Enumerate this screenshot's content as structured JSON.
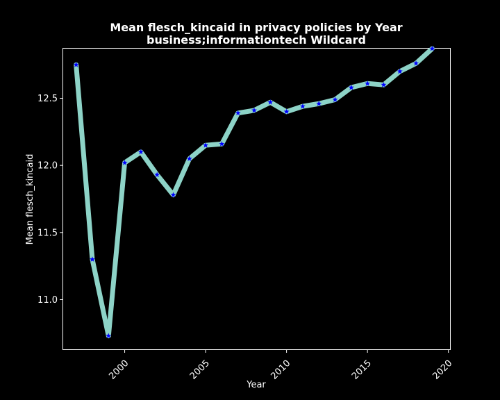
{
  "chart_data": {
    "type": "line",
    "title": "Mean flesch_kincaid in privacy policies by Year",
    "subtitle": "business;informationtech Wildcard",
    "xlabel": "Year",
    "ylabel": "Mean flesch_kincaid",
    "xlim": [
      1996.2,
      2020.1
    ],
    "ylim": [
      10.63,
      12.87
    ],
    "xticks": [
      2000,
      2005,
      2010,
      2015,
      2020
    ],
    "yticks": [
      11.0,
      11.5,
      12.0,
      12.5
    ],
    "grid": false,
    "line_color": "#8dd3c7",
    "marker_color": "#0000ff",
    "marker": "star",
    "series": [
      {
        "x": [
          1997,
          1998,
          1999,
          2000,
          2001,
          2002,
          2003,
          2004,
          2005,
          2006,
          2007,
          2008,
          2009,
          2010,
          2011,
          2012,
          2013,
          2014,
          2015,
          2016,
          2017,
          2018,
          2019
        ],
        "values": [
          12.75,
          11.3,
          10.73,
          12.02,
          12.1,
          11.93,
          11.78,
          12.05,
          12.15,
          12.16,
          12.39,
          12.41,
          12.47,
          12.4,
          12.44,
          12.46,
          12.49,
          12.58,
          12.61,
          12.6,
          12.7,
          12.76,
          12.87
        ]
      }
    ]
  }
}
